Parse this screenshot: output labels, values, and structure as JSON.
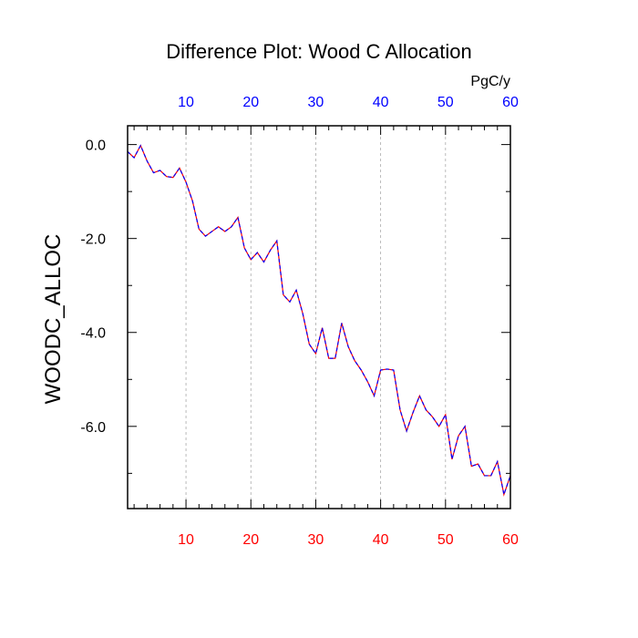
{
  "chart_data": {
    "type": "line",
    "title": "Difference Plot: Wood C Allocation",
    "units_label": "PgC/y",
    "xlabel": "",
    "ylabel": "WOODC_ALLOC",
    "xlim": [
      1,
      60
    ],
    "ylim": [
      -7.75,
      0.4
    ],
    "grid": "vertical dashed at x ticks",
    "x_ticks": [
      10,
      20,
      30,
      40,
      50,
      60
    ],
    "x_tick_labels": [
      "10",
      "20",
      "30",
      "40",
      "50",
      "60"
    ],
    "y_ticks": [
      0.0,
      -2.0,
      -4.0,
      -6.0
    ],
    "y_tick_labels": [
      "0.0",
      "-2.0",
      "-4.0",
      "-6.0"
    ],
    "colors": {
      "bottom_tick_labels": "#ff0000",
      "top_tick_labels": "#0000ff",
      "series_a": "#ff0000",
      "series_b": "#0000ff",
      "grid": "#aaaaaa",
      "axis": "#000000"
    },
    "x": [
      1,
      2,
      3,
      4,
      5,
      6,
      7,
      8,
      9,
      10,
      11,
      12,
      13,
      14,
      15,
      16,
      17,
      18,
      19,
      20,
      21,
      22,
      23,
      24,
      25,
      26,
      27,
      28,
      29,
      30,
      31,
      32,
      33,
      34,
      35,
      36,
      37,
      38,
      39,
      40,
      41,
      42,
      43,
      44,
      45,
      46,
      47,
      48,
      49,
      50,
      51,
      52,
      53,
      54,
      55,
      56,
      57,
      58,
      59,
      60
    ],
    "series": [
      {
        "values": [
          -0.15,
          -0.28,
          -0.02,
          -0.35,
          -0.6,
          -0.55,
          -0.68,
          -0.7,
          -0.5,
          -0.8,
          -1.2,
          -1.8,
          -1.95,
          -1.85,
          -1.75,
          -1.85,
          -1.75,
          -1.55,
          -2.2,
          -2.45,
          -2.3,
          -2.5,
          -2.25,
          -2.05,
          -3.2,
          -3.35,
          -3.1,
          -3.6,
          -4.25,
          -4.45,
          -3.9,
          -4.55,
          -4.55,
          -3.8,
          -4.3,
          -4.6,
          -4.8,
          -5.05,
          -5.35,
          -4.8,
          -4.78,
          -4.8,
          -5.65,
          -6.1,
          -5.7,
          -5.35,
          -5.65,
          -5.8,
          -6.0,
          -5.75,
          -6.7,
          -6.2,
          -6.0,
          -6.85,
          -6.8,
          -7.05,
          -7.05,
          -6.75,
          -7.45,
          -7.05
        ]
      },
      {
        "values": [
          -0.15,
          -0.28,
          -0.02,
          -0.35,
          -0.6,
          -0.55,
          -0.68,
          -0.7,
          -0.5,
          -0.8,
          -1.2,
          -1.8,
          -1.95,
          -1.85,
          -1.75,
          -1.85,
          -1.75,
          -1.55,
          -2.2,
          -2.45,
          -2.3,
          -2.5,
          -2.25,
          -2.05,
          -3.2,
          -3.35,
          -3.1,
          -3.6,
          -4.25,
          -4.45,
          -3.9,
          -4.55,
          -4.55,
          -3.8,
          -4.3,
          -4.6,
          -4.8,
          -5.05,
          -5.35,
          -4.8,
          -4.78,
          -4.8,
          -5.65,
          -6.1,
          -5.7,
          -5.35,
          -5.65,
          -5.8,
          -6.0,
          -5.75,
          -6.7,
          -6.2,
          -6.0,
          -6.85,
          -6.8,
          -7.05,
          -7.05,
          -6.75,
          -7.45,
          -7.05
        ]
      }
    ]
  }
}
